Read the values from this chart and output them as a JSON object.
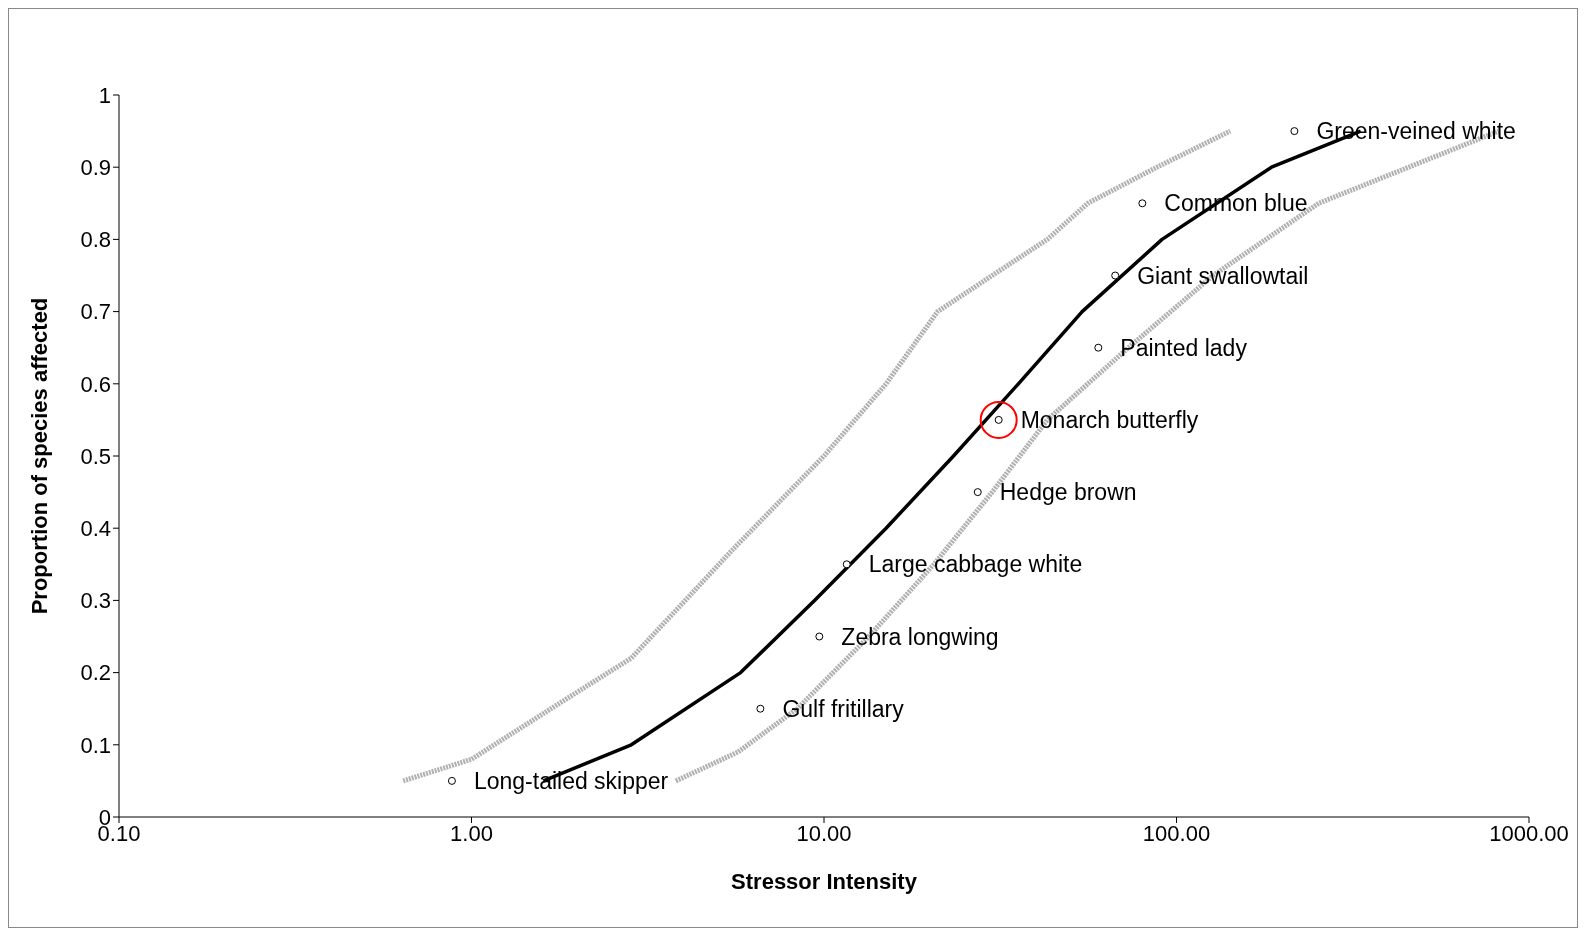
{
  "chart_data": {
    "type": "scatter",
    "xlabel": "Stressor Intensity",
    "ylabel": "Proportion of species affected",
    "log": "x",
    "xlim": [
      0.1,
      1000
    ],
    "xticks": [
      {
        "value": 0.1,
        "label": "0.10"
      },
      {
        "value": 1,
        "label": "1.00"
      },
      {
        "value": 10,
        "label": "10.00"
      },
      {
        "value": 100,
        "label": "100.00"
      },
      {
        "value": 1000,
        "label": "1000.00"
      }
    ],
    "ylim": [
      0,
      1
    ],
    "yticks": [
      0,
      0.1,
      0.2,
      0.3,
      0.4,
      0.5,
      0.6,
      0.7,
      0.8,
      0.9,
      1
    ],
    "grid": false,
    "legend": false,
    "series": [
      {
        "type": "line",
        "color": "#b0b0b0",
        "line_style": "dotted",
        "marker": "none",
        "x": [
          0.64,
          1.0,
          1.95,
          2.84,
          5.5,
          10,
          15,
          21,
          30,
          43,
          56,
          88,
          142
        ],
        "values": [
          0.05,
          0.08,
          0.17,
          0.22,
          0.37,
          0.5,
          0.6,
          0.7,
          0.75,
          0.8,
          0.85,
          0.9,
          0.95
        ]
      },
      {
        "type": "line",
        "color": "#b0b0b0",
        "line_style": "dotted",
        "marker": "none",
        "x": [
          3.8,
          5.7,
          8.4,
          13.4,
          20.5,
          30,
          43,
          73,
          127,
          253,
          820
        ],
        "values": [
          0.05,
          0.09,
          0.15,
          0.25,
          0.35,
          0.45,
          0.55,
          0.65,
          0.75,
          0.85,
          0.95
        ]
      },
      {
        "type": "line",
        "color": "#000000",
        "line_style": "solid",
        "marker": "none",
        "x": [
          1.6,
          2.84,
          5.8,
          9.4,
          15,
          23.3,
          35.6,
          54,
          91,
          186,
          333
        ],
        "values": [
          0.05,
          0.1,
          0.2,
          0.3,
          0.4,
          0.5,
          0.6,
          0.7,
          0.8,
          0.9,
          0.95
        ]
      },
      {
        "color": "#000000",
        "marker": "circle",
        "x": [
          0.88,
          6.6,
          9.7,
          11.6,
          27.3,
          31.3,
          60,
          67,
          80,
          216
        ],
        "values": [
          0.05,
          0.15,
          0.25,
          0.35,
          0.45,
          0.55,
          0.65,
          0.75,
          0.85,
          0.95
        ]
      },
      {
        "color": "#ff0000",
        "marker": "circle",
        "x": [
          31.3
        ],
        "values": [
          0.55
        ]
      }
    ],
    "annotations": [
      {
        "text": "Long-tailed skipper",
        "x": 0.88,
        "y": 0.05
      },
      {
        "text": "Gulf fritillary",
        "x": 6.6,
        "y": 0.15
      },
      {
        "text": "Zebra longwing",
        "x": 9.7,
        "y": 0.25
      },
      {
        "text": "Large cabbage white",
        "x": 11.6,
        "y": 0.35
      },
      {
        "text": "Hedge brown",
        "x": 27.3,
        "y": 0.45
      },
      {
        "text": "Monarch butterfly",
        "x": 31.3,
        "y": 0.55
      },
      {
        "text": "Painted lady",
        "x": 60,
        "y": 0.65
      },
      {
        "text": "Giant swallowtail",
        "x": 67,
        "y": 0.75
      },
      {
        "text": "Common blue",
        "x": 80,
        "y": 0.85
      },
      {
        "text": "Green-veined white",
        "x": 216,
        "y": 0.95
      }
    ]
  }
}
